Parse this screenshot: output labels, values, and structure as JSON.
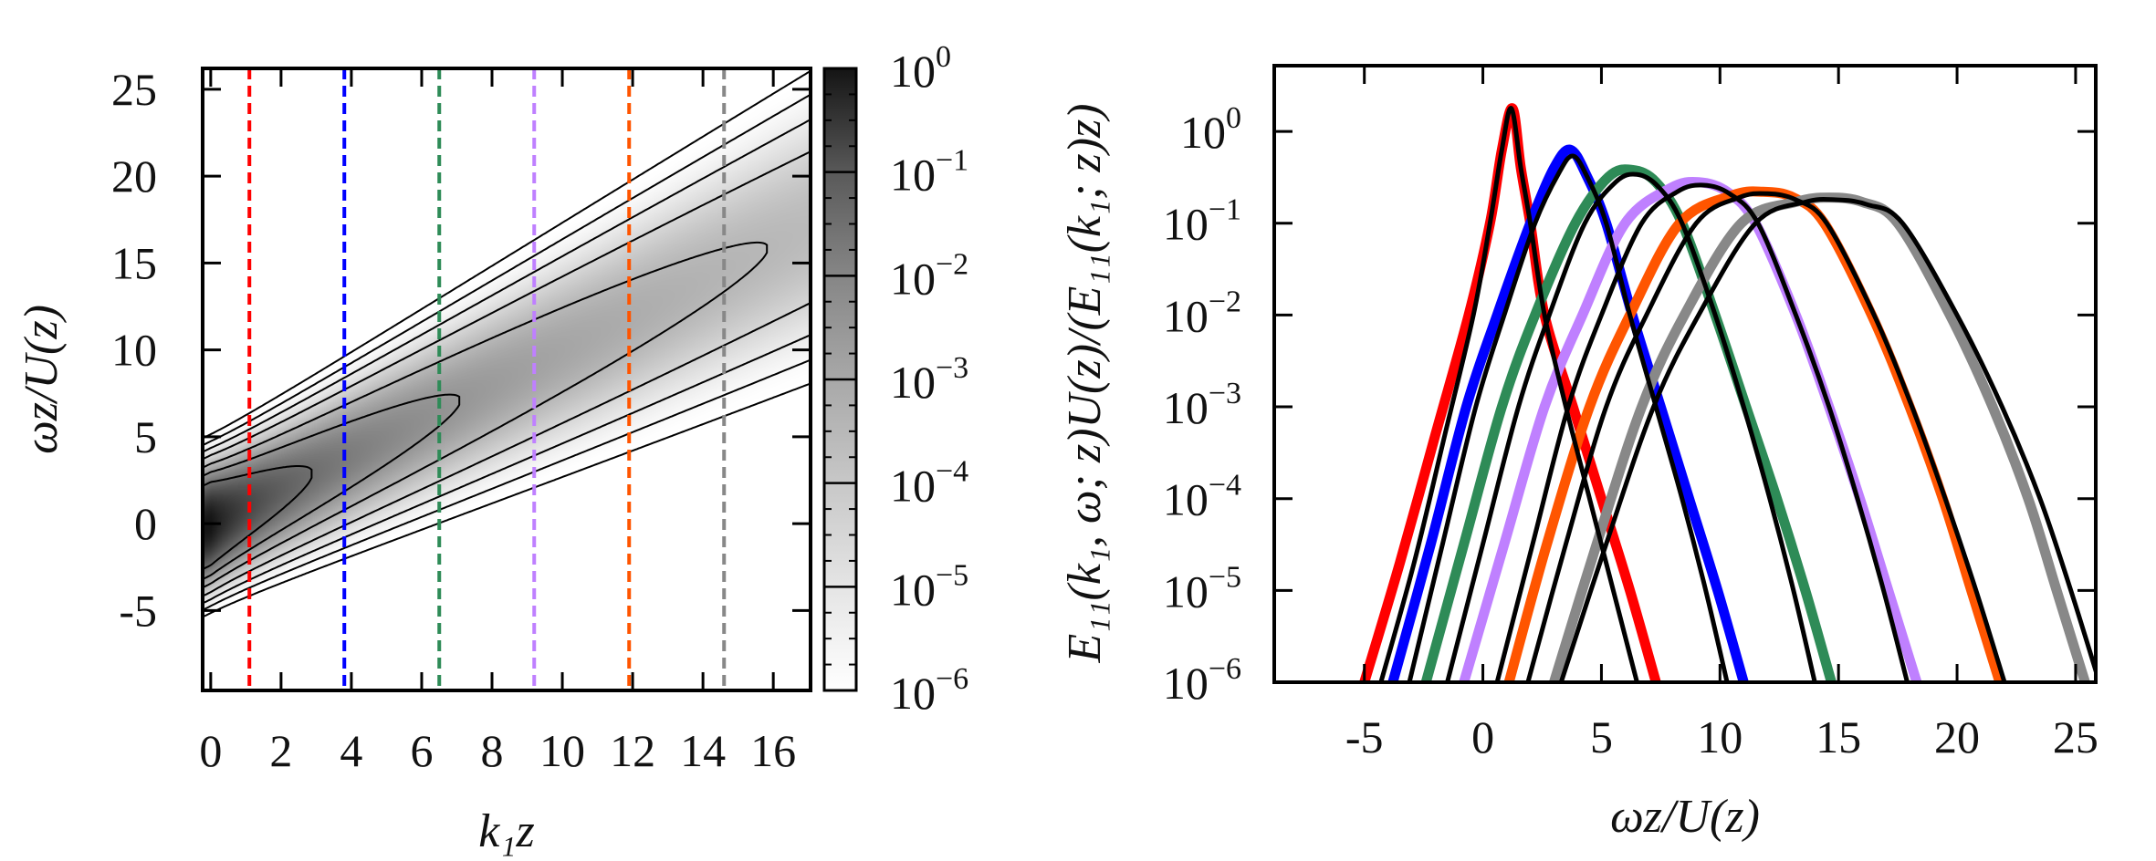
{
  "chart_data": [
    {
      "type": "heatmap",
      "xlabel": "k₁z",
      "ylabel": "ωz/U(z)",
      "xlim": [
        -0.23,
        17.06
      ],
      "ylim": [
        -9.6,
        26.2
      ],
      "xticks": [
        "0",
        "2",
        "4",
        "6",
        "8",
        "10",
        "12",
        "14",
        "16"
      ],
      "xtick_values": [
        0,
        2,
        4,
        6,
        8,
        10,
        12,
        14,
        16
      ],
      "yticks": [
        "-5",
        "0",
        "5",
        "10",
        "15",
        "20",
        "25"
      ],
      "ytick_values": [
        -5,
        0,
        5,
        10,
        15,
        20,
        25
      ],
      "colorbar": {
        "scale": "log",
        "range": [
          1e-06,
          1
        ],
        "ticks": [
          {
            "base": "10",
            "exp": "0"
          },
          {
            "base": "10",
            "exp": "−1"
          },
          {
            "base": "10",
            "exp": "−2"
          },
          {
            "base": "10",
            "exp": "−3"
          },
          {
            "base": "10",
            "exp": "−4"
          },
          {
            "base": "10",
            "exp": "−5"
          },
          {
            "base": "10",
            "exp": "−6"
          }
        ],
        "colormap": "white-to-black grayscale"
      },
      "contour_levels": [
        0.05,
        0.01,
        0.002,
        0.0003,
        5e-05,
        8e-06,
        1e-06
      ],
      "contour_color": "#000000",
      "dashed_lines": [
        {
          "k1z": 1.1,
          "color": "#ff0000"
        },
        {
          "k1z": 3.8,
          "color": "#0000ff"
        },
        {
          "k1z": 6.5,
          "color": "#2e8b57"
        },
        {
          "k1z": 9.2,
          "color": "#bf80ff"
        },
        {
          "k1z": 11.9,
          "color": "#ff5500"
        },
        {
          "k1z": 14.6,
          "color": "#888888"
        }
      ]
    },
    {
      "type": "line",
      "xlabel": "ωz/U(z)",
      "ylabel": "E₁₁(k₁, ω; z)U(z)/(E₁₁(k₁; z)z)",
      "xlim": [
        -8.8,
        25.85
      ],
      "ylim": [
        1e-06,
        5.2
      ],
      "yscale": "log",
      "xticks": [
        "-5",
        "0",
        "5",
        "10",
        "15",
        "20",
        "25"
      ],
      "xtick_values": [
        -5,
        0,
        5,
        10,
        15,
        20,
        25
      ],
      "yticks": [
        {
          "base": "10",
          "exp": "0"
        },
        {
          "base": "10",
          "exp": "−1"
        },
        {
          "base": "10",
          "exp": "−2"
        },
        {
          "base": "10",
          "exp": "−3"
        },
        {
          "base": "10",
          "exp": "−4"
        },
        {
          "base": "10",
          "exp": "−5"
        },
        {
          "base": "10",
          "exp": "−6"
        }
      ],
      "ytick_values": [
        1,
        0.1,
        0.01,
        0.001,
        0.0001,
        1e-05,
        1e-06
      ],
      "series": [
        {
          "color": "#ff0000",
          "style": "measured",
          "points": [
            [
              -5.0,
              1e-06
            ],
            [
              -3.5,
              2e-05
            ],
            [
              -2,
              0.0005
            ],
            [
              -0.6,
              0.01
            ],
            [
              0.3,
              0.1
            ],
            [
              0.8,
              0.63
            ],
            [
              1.25,
              1.78
            ],
            [
              1.6,
              0.4
            ],
            [
              2.0,
              0.1
            ],
            [
              2.6,
              0.01
            ],
            [
              3.8,
              0.001
            ],
            [
              5.0,
              0.0001
            ],
            [
              6.2,
              1e-05
            ],
            [
              7.3,
              1e-06
            ]
          ]
        },
        {
          "color": "#000000",
          "style": "model",
          "points": [
            [
              -4.3,
              1e-06
            ],
            [
              -2.9,
              2e-05
            ],
            [
              -1.6,
              0.0005
            ],
            [
              -0.4,
              0.01
            ],
            [
              0.3,
              0.1
            ],
            [
              0.8,
              0.63
            ],
            [
              1.2,
              1.78
            ],
            [
              1.6,
              0.4
            ],
            [
              2.0,
              0.1
            ],
            [
              2.6,
              0.01
            ],
            [
              3.5,
              0.001
            ],
            [
              4.5,
              0.0001
            ],
            [
              5.5,
              1e-05
            ],
            [
              6.5,
              1e-06
            ]
          ]
        },
        {
          "color": "#0000ff",
          "style": "measured",
          "points": [
            [
              -3.8,
              1e-06
            ],
            [
              -2.2,
              3.2e-05
            ],
            [
              -0.7,
              0.001
            ],
            [
              0.6,
              0.01
            ],
            [
              2.0,
              0.1
            ],
            [
              3.0,
              0.4
            ],
            [
              3.7,
              0.63
            ],
            [
              4.4,
              0.32
            ],
            [
              5.2,
              0.1
            ],
            [
              6.3,
              0.01
            ],
            [
              7.5,
              0.001
            ],
            [
              8.7,
              0.0001
            ],
            [
              9.9,
              1e-05
            ],
            [
              11.0,
              1e-06
            ]
          ]
        },
        {
          "color": "#000000",
          "style": "model",
          "points": [
            [
              -3.1,
              1e-06
            ],
            [
              -1.7,
              3.2e-05
            ],
            [
              -0.3,
              0.001
            ],
            [
              0.9,
              0.01
            ],
            [
              2.2,
              0.1
            ],
            [
              3.2,
              0.35
            ],
            [
              3.8,
              0.54
            ],
            [
              4.4,
              0.32
            ],
            [
              5.2,
              0.1
            ],
            [
              6.2,
              0.01
            ],
            [
              7.3,
              0.001
            ],
            [
              8.4,
              0.0001
            ],
            [
              9.4,
              1e-05
            ],
            [
              10.3,
              1e-06
            ]
          ]
        },
        {
          "color": "#2e8b57",
          "style": "measured",
          "points": [
            [
              -2.4,
              1e-06
            ],
            [
              -0.8,
              3.2e-05
            ],
            [
              0.8,
              0.001
            ],
            [
              2.2,
              0.01
            ],
            [
              3.9,
              0.1
            ],
            [
              5.3,
              0.32
            ],
            [
              6.3,
              0.38
            ],
            [
              7.3,
              0.28
            ],
            [
              8.4,
              0.1
            ],
            [
              9.8,
              0.01
            ],
            [
              11.1,
              0.001
            ],
            [
              12.4,
              0.0001
            ],
            [
              13.6,
              1e-05
            ],
            [
              14.7,
              1e-06
            ]
          ]
        },
        {
          "color": "#000000",
          "style": "model",
          "points": [
            [
              -1.5,
              1e-06
            ],
            [
              0,
              3.2e-05
            ],
            [
              1.5,
              0.001
            ],
            [
              2.8,
              0.01
            ],
            [
              4.3,
              0.1
            ],
            [
              5.6,
              0.28
            ],
            [
              6.5,
              0.34
            ],
            [
              7.4,
              0.25
            ],
            [
              8.4,
              0.1
            ],
            [
              9.8,
              0.01
            ],
            [
              11.0,
              0.001
            ],
            [
              12.1,
              0.0001
            ],
            [
              13.1,
              1e-05
            ],
            [
              14.0,
              1e-06
            ]
          ]
        },
        {
          "color": "#bf80ff",
          "style": "measured",
          "points": [
            [
              -0.8,
              1e-06
            ],
            [
              0.9,
              3.2e-05
            ],
            [
              2.6,
              0.001
            ],
            [
              4.2,
              0.01
            ],
            [
              6.0,
              0.1
            ],
            [
              7.9,
              0.24
            ],
            [
              9.1,
              0.28
            ],
            [
              10.3,
              0.22
            ],
            [
              11.5,
              0.1
            ],
            [
              13.2,
              0.01
            ],
            [
              14.6,
              0.001
            ],
            [
              15.9,
              0.0001
            ],
            [
              17.1,
              1e-05
            ],
            [
              18.3,
              1e-06
            ]
          ]
        },
        {
          "color": "#000000",
          "style": "model",
          "points": [
            [
              0.6,
              1e-06
            ],
            [
              2.1,
              3.2e-05
            ],
            [
              3.6,
              0.001
            ],
            [
              5.0,
              0.01
            ],
            [
              6.7,
              0.1
            ],
            [
              8.2,
              0.22
            ],
            [
              9.3,
              0.26
            ],
            [
              10.4,
              0.21
            ],
            [
              11.6,
              0.1
            ],
            [
              13.2,
              0.01
            ],
            [
              14.6,
              0.001
            ],
            [
              15.8,
              0.0001
            ],
            [
              16.9,
              1e-05
            ],
            [
              17.9,
              1e-06
            ]
          ]
        },
        {
          "color": "#ff5500",
          "style": "measured",
          "points": [
            [
              1.1,
              1e-06
            ],
            [
              2.7,
              3.2e-05
            ],
            [
              4.5,
              0.001
            ],
            [
              6.2,
              0.01
            ],
            [
              8.3,
              0.1
            ],
            [
              10.5,
              0.2
            ],
            [
              11.8,
              0.22
            ],
            [
              13.1,
              0.19
            ],
            [
              14.4,
              0.1
            ],
            [
              16.4,
              0.01
            ],
            [
              18.0,
              0.001
            ],
            [
              19.4,
              0.0001
            ],
            [
              20.6,
              1e-05
            ],
            [
              21.8,
              1e-06
            ]
          ]
        },
        {
          "color": "#000000",
          "style": "model",
          "points": [
            [
              1.9,
              1e-06
            ],
            [
              3.5,
              3.2e-05
            ],
            [
              5.2,
              0.001
            ],
            [
              6.9,
              0.01
            ],
            [
              9.0,
              0.1
            ],
            [
              10.8,
              0.19
            ],
            [
              12.0,
              0.21
            ],
            [
              13.2,
              0.18
            ],
            [
              14.5,
              0.1
            ],
            [
              16.5,
              0.01
            ],
            [
              18.1,
              0.001
            ],
            [
              19.5,
              0.0001
            ],
            [
              20.8,
              1e-05
            ],
            [
              22.0,
              1e-06
            ]
          ]
        },
        {
          "color": "#888888",
          "style": "measured",
          "points": [
            [
              3.0,
              1e-06
            ],
            [
              4.8,
              3.2e-05
            ],
            [
              6.7,
              0.001
            ],
            [
              8.5,
              0.01
            ],
            [
              10.9,
              0.1
            ],
            [
              13.2,
              0.17
            ],
            [
              14.6,
              0.19
            ],
            [
              16.0,
              0.17
            ],
            [
              17.5,
              0.1
            ],
            [
              19.7,
              0.01
            ],
            [
              21.5,
              0.001
            ],
            [
              23.0,
              0.0001
            ],
            [
              24.2,
              1e-05
            ],
            [
              25.4,
              1e-06
            ]
          ]
        },
        {
          "color": "#000000",
          "style": "model",
          "points": [
            [
              3.3,
              1e-06
            ],
            [
              5.2,
              3.2e-05
            ],
            [
              7.2,
              0.001
            ],
            [
              9.1,
              0.01
            ],
            [
              11.5,
              0.1
            ],
            [
              13.6,
              0.17
            ],
            [
              14.9,
              0.18
            ],
            [
              16.2,
              0.16
            ],
            [
              17.7,
              0.1
            ],
            [
              20.0,
              0.01
            ],
            [
              21.9,
              0.001
            ],
            [
              23.5,
              0.0001
            ],
            [
              24.8,
              1e-05
            ],
            [
              26.0,
              1e-06
            ]
          ]
        }
      ]
    }
  ]
}
